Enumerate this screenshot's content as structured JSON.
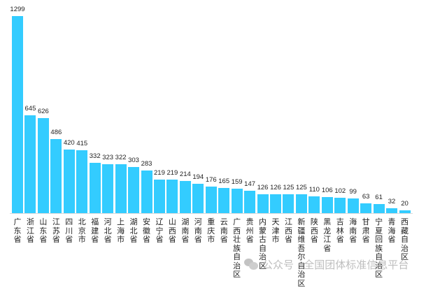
{
  "chart_data": {
    "type": "bar",
    "title": "",
    "xlabel": "",
    "ylabel": "",
    "ylim": [
      0,
      1299
    ],
    "grid": false,
    "legend": null,
    "bar_color": "#33ccff",
    "categories": [
      "广东省",
      "浙江省",
      "山东省",
      "江苏省",
      "四川省",
      "北京市",
      "福建省",
      "河北省",
      "上海市",
      "湖北省",
      "安徽省",
      "辽宁省",
      "山西省",
      "湖南省",
      "河南省",
      "重庆市",
      "云南省",
      "广西壮族自治区",
      "贵州省",
      "内蒙古自治区",
      "天津市",
      "江西省",
      "新疆维吾尔自治区",
      "陕西省",
      "黑龙江省",
      "吉林省",
      "海南省",
      "甘肃省",
      "宁夏回族自治区",
      "青海省",
      "西藏自治区"
    ],
    "values": [
      1299,
      645,
      626,
      486,
      420,
      415,
      332,
      323,
      322,
      303,
      283,
      219,
      219,
      214,
      194,
      176,
      165,
      159,
      147,
      126,
      126,
      125,
      125,
      110,
      106,
      102,
      99,
      63,
      61,
      32,
      20
    ]
  },
  "watermark": {
    "icon": "wechat-icon",
    "text": "公众号 · 全国团体标准信息平台"
  }
}
